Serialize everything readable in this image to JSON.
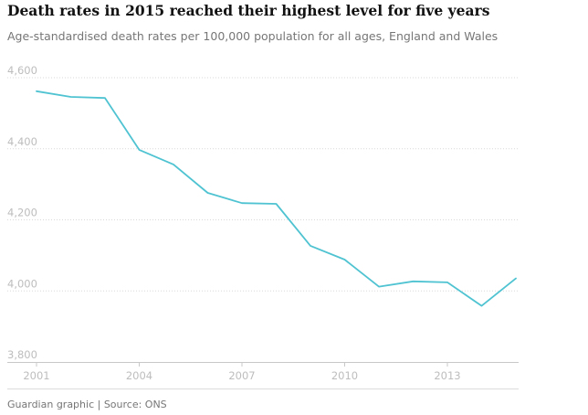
{
  "header": {
    "title": "Death rates in 2015 reached their highest level for five years",
    "subtitle": "Age-standardised death rates per 100,000 population for all ages, England and Wales"
  },
  "footer": {
    "source": "Guardian graphic | Source: ONS"
  },
  "colors": {
    "line": "#4fc3d1",
    "grid": "#d9d9d9",
    "axis_text": "#bdbdbd",
    "title": "#121212",
    "subtitle": "#767676"
  },
  "chart_data": {
    "type": "line",
    "title": "Death rates in 2015 reached their highest level for five years",
    "subtitle": "Age-standardised death rates per 100,000 population for all ages, England and Wales",
    "xlabel": "",
    "ylabel": "",
    "x": [
      2001,
      2002,
      2003,
      2004,
      2005,
      2006,
      2007,
      2008,
      2009,
      2010,
      2011,
      2012,
      2013,
      2014,
      2015
    ],
    "series": [
      {
        "values": [
          4562,
          4546,
          4543,
          4397,
          4356,
          4276,
          4247,
          4245,
          4127,
          4088,
          4012,
          4027,
          4024,
          3958,
          4035
        ]
      }
    ],
    "ylim": [
      3800,
      4600
    ],
    "xlim": [
      2001,
      2015
    ],
    "y_ticks": [
      4600,
      4400,
      4200,
      4000,
      3800
    ],
    "y_tick_labels": [
      "4,600",
      "4,400",
      "4,200",
      "4,000",
      "3,800"
    ],
    "x_ticks": [
      2001,
      2004,
      2007,
      2010,
      2013
    ],
    "x_tick_labels": [
      "2001",
      "2004",
      "2007",
      "2010",
      "2013"
    ],
    "grid": true,
    "grid_style": "dotted horizontal",
    "legend": "none"
  }
}
